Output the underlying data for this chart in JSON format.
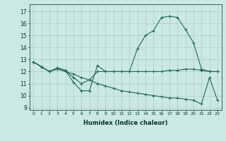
{
  "xlabel": "Humidex (Indice chaleur)",
  "bg_color": "#cce8e4",
  "grid_color": "#b0ccc8",
  "line_color": "#1a6b5a",
  "xlim": [
    -0.5,
    23.5
  ],
  "ylim": [
    8.8,
    17.6
  ],
  "yticks": [
    9,
    10,
    11,
    12,
    13,
    14,
    15,
    16,
    17
  ],
  "xticks": [
    0,
    1,
    2,
    3,
    4,
    5,
    6,
    7,
    8,
    9,
    10,
    11,
    12,
    13,
    14,
    15,
    16,
    17,
    18,
    19,
    20,
    21,
    22,
    23
  ],
  "curve_x": [
    0,
    1,
    2,
    3,
    4,
    5,
    6,
    7,
    8,
    9,
    10,
    11,
    12,
    13,
    14,
    15,
    16,
    17,
    18,
    19,
    20,
    21,
    22,
    23
  ],
  "curve_y": [
    12.8,
    12.4,
    12.0,
    12.3,
    12.1,
    11.1,
    10.4,
    10.4,
    12.5,
    12.0,
    12.0,
    12.0,
    12.0,
    13.9,
    15.0,
    15.4,
    16.5,
    16.6,
    16.5,
    15.5,
    14.4,
    12.2,
    12.0,
    12.0
  ],
  "flat_x": [
    0,
    1,
    2,
    3,
    4,
    5,
    6,
    7,
    8,
    9,
    10,
    11,
    12,
    13,
    14,
    15,
    16,
    17,
    18,
    19,
    20,
    21,
    22,
    23
  ],
  "flat_y": [
    12.8,
    12.4,
    12.0,
    12.3,
    12.1,
    11.5,
    11.0,
    11.3,
    12.0,
    12.0,
    12.0,
    12.0,
    12.0,
    12.0,
    12.0,
    12.0,
    12.0,
    12.1,
    12.1,
    12.2,
    12.2,
    12.1,
    12.0,
    12.0
  ],
  "dec_x": [
    0,
    1,
    2,
    3,
    4,
    5,
    6,
    7,
    8,
    9,
    10,
    11,
    12,
    13,
    14,
    15,
    16,
    17,
    18,
    19,
    20,
    21,
    22,
    23
  ],
  "dec_y": [
    12.8,
    12.4,
    12.0,
    12.2,
    12.0,
    11.8,
    11.5,
    11.3,
    11.0,
    10.8,
    10.6,
    10.4,
    10.3,
    10.2,
    10.1,
    10.0,
    9.9,
    9.8,
    9.8,
    9.7,
    9.6,
    9.3,
    11.5,
    9.6
  ]
}
